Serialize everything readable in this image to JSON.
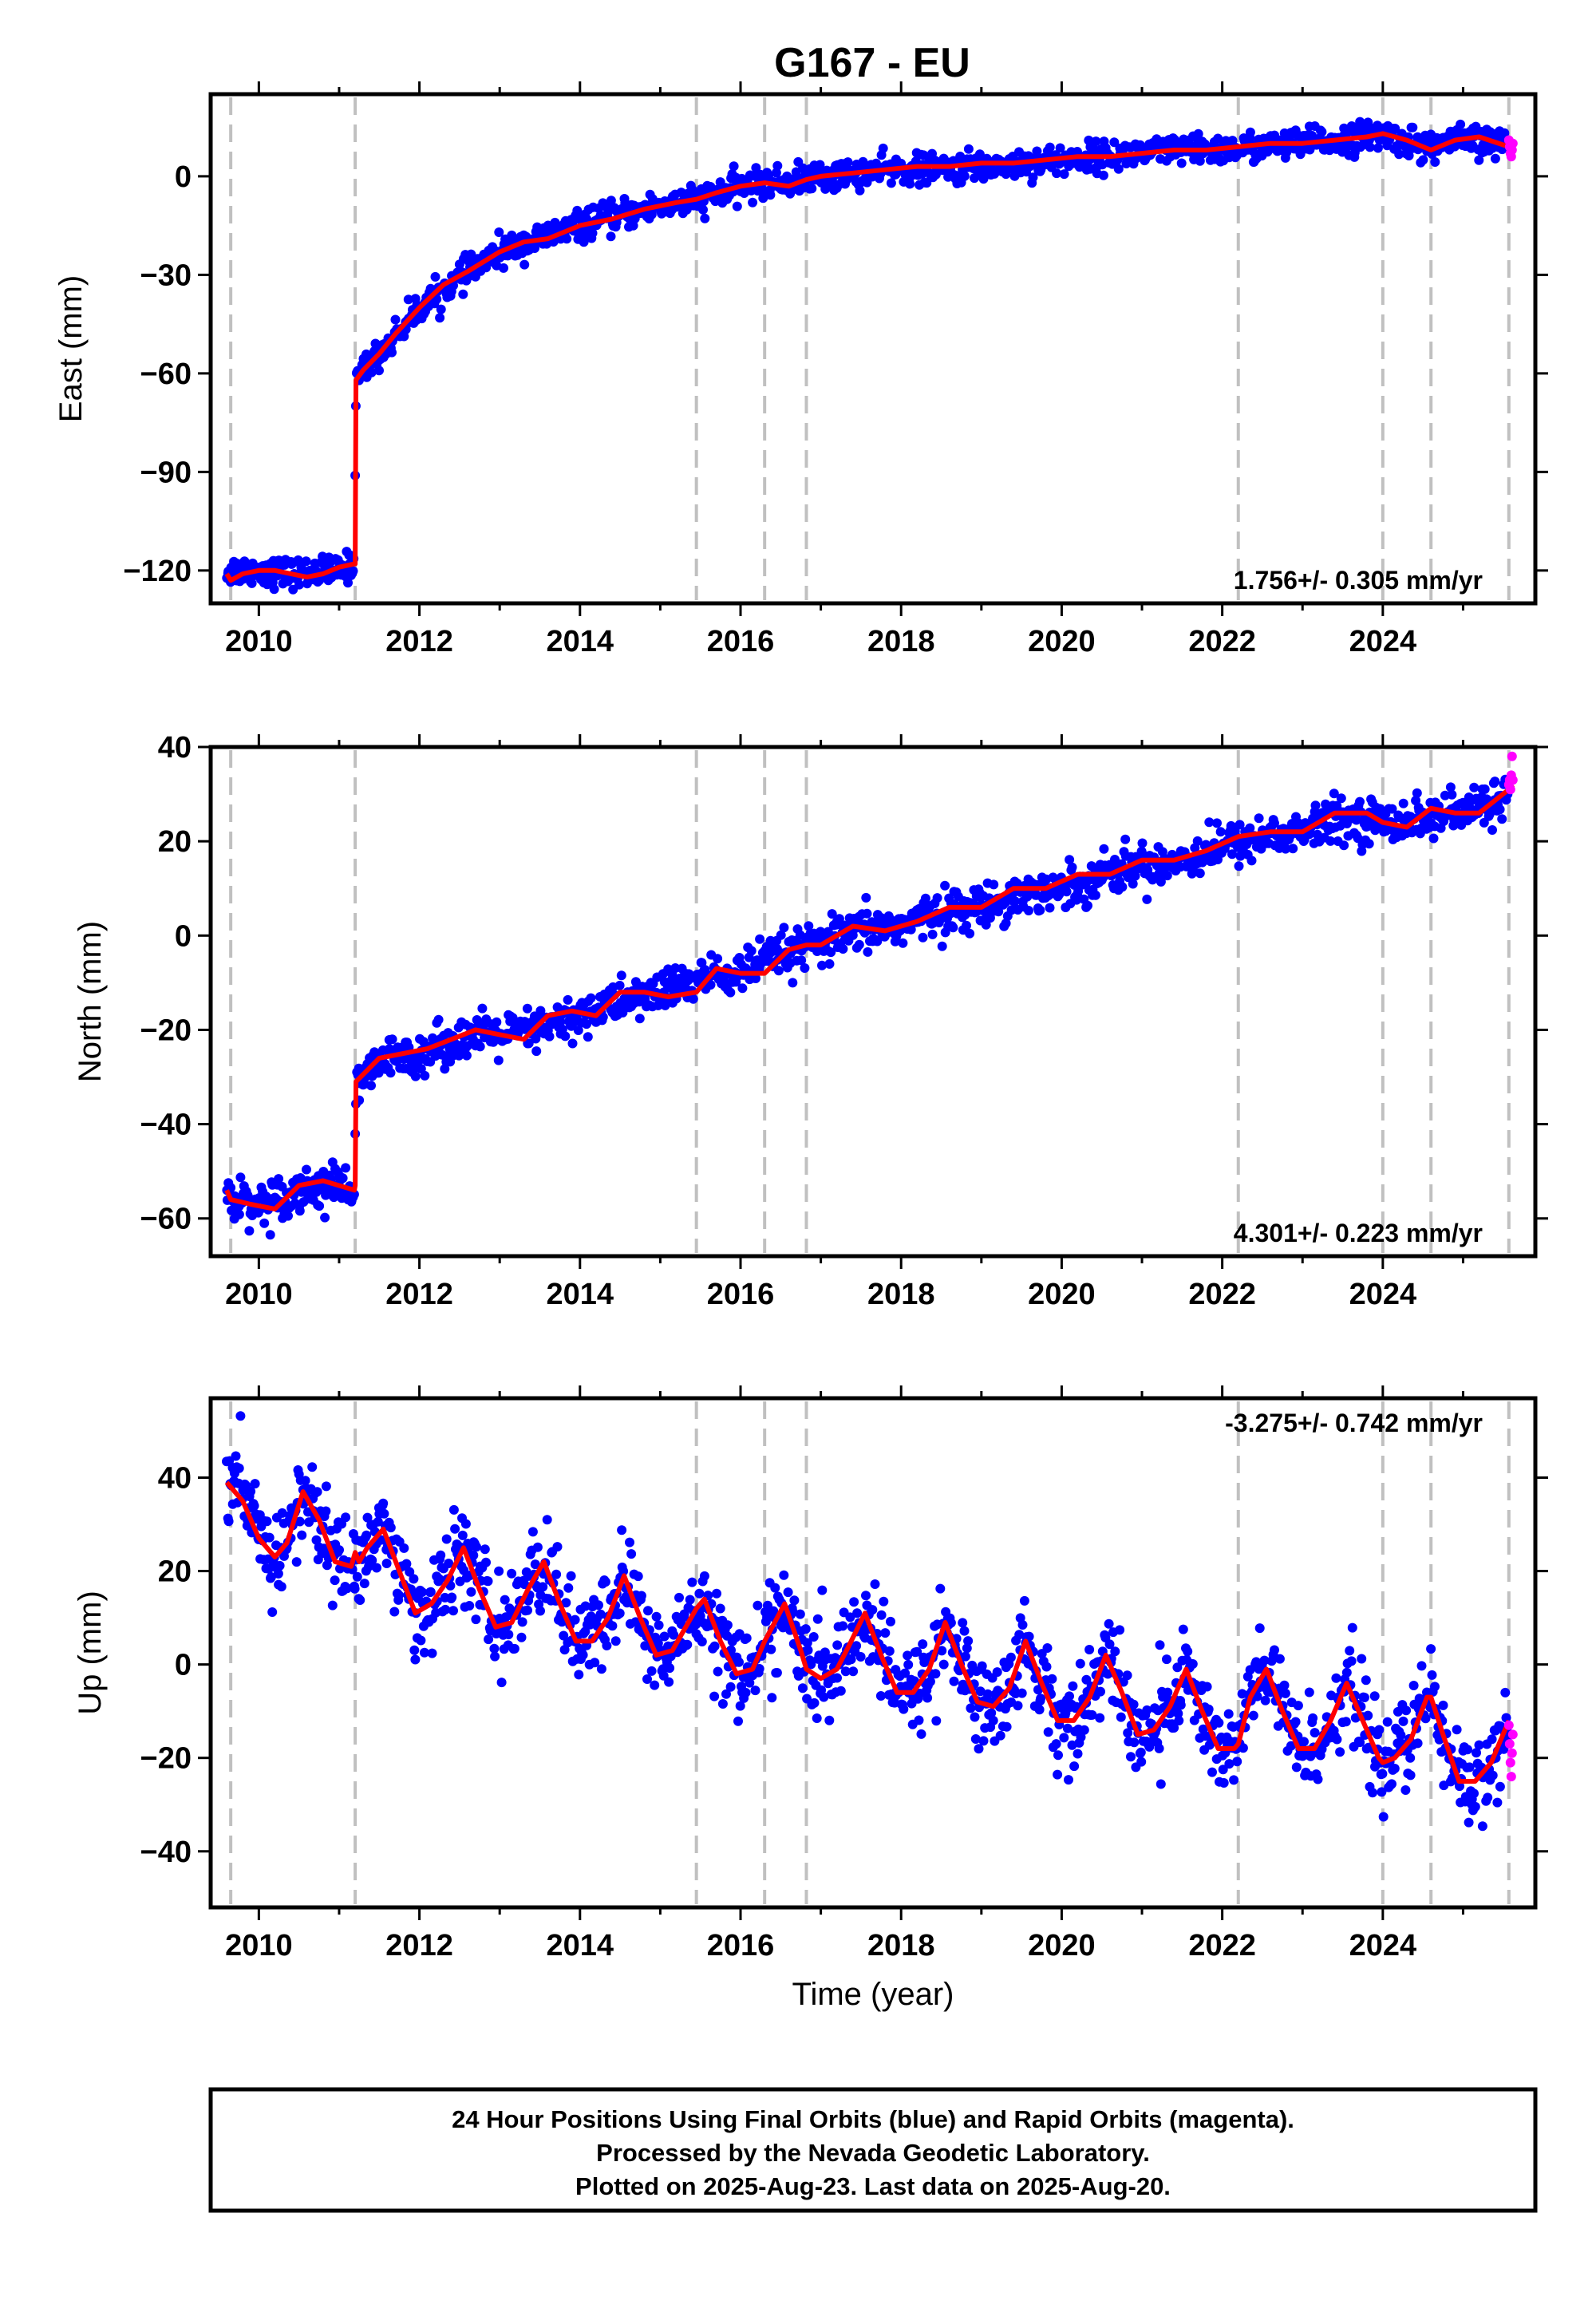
{
  "title": "G167 - EU",
  "colors": {
    "final_orbits": "#0000ff",
    "rapid_orbits": "#ff00ff",
    "model_fit": "#ff0000",
    "event_lines": "#c0c0c0",
    "frame": "#000000"
  },
  "chart_data": [
    {
      "type": "scatter",
      "component": "East",
      "ylabel": "East (mm)",
      "xlabel": "",
      "xlim": [
        2009.4,
        2025.9
      ],
      "ylim": [
        -130,
        25
      ],
      "yticks": [
        -120,
        -90,
        -60,
        -30,
        0
      ],
      "xticks": [
        2010,
        2012,
        2014,
        2016,
        2018,
        2020,
        2022,
        2024
      ],
      "rate_annotation": "1.756+/- 0.305 mm/yr",
      "rate_position": "bottom-right",
      "event_lines": [
        2009.65,
        2011.2,
        2015.45,
        2016.3,
        2016.82,
        2022.2,
        2024.0,
        2024.6,
        2025.57
      ],
      "series": [
        {
          "role": "model_fit",
          "x": [
            2009.6,
            2009.65,
            2009.8,
            2010.0,
            2010.2,
            2010.4,
            2010.6,
            2010.8,
            2011.0,
            2011.19,
            2011.2,
            2011.21,
            2011.3,
            2011.5,
            2011.7,
            2012.0,
            2012.3,
            2012.6,
            2013.0,
            2013.3,
            2013.6,
            2014.0,
            2014.4,
            2014.8,
            2015.2,
            2015.45,
            2015.7,
            2016.0,
            2016.3,
            2016.6,
            2016.82,
            2017.0,
            2017.4,
            2017.8,
            2018.2,
            2018.6,
            2019.0,
            2019.4,
            2019.8,
            2020.2,
            2020.6,
            2021.0,
            2021.4,
            2021.8,
            2022.2,
            2022.6,
            2023.0,
            2023.4,
            2023.8,
            2024.0,
            2024.3,
            2024.6,
            2024.9,
            2025.2,
            2025.57,
            2025.62
          ],
          "y": [
            -121,
            -123,
            -121,
            -120,
            -120,
            -121,
            -122,
            -121,
            -119,
            -118,
            -118,
            -62,
            -59,
            -54,
            -48,
            -40,
            -33,
            -29,
            -23,
            -20,
            -19,
            -15,
            -13,
            -10,
            -8,
            -7,
            -5,
            -3,
            -2,
            -3,
            -1,
            0,
            1,
            2,
            3,
            3,
            4,
            4,
            5,
            6,
            6,
            7,
            8,
            8,
            9,
            10,
            10,
            11,
            12,
            13,
            11,
            8,
            11,
            12,
            9,
            9
          ]
        },
        {
          "role": "final_orbits",
          "envelope_x": [
            2009.6,
            2010.0,
            2010.5,
            2011.0,
            2011.19,
            2011.21,
            2011.5,
            2012.0,
            2012.5,
            2013.0,
            2013.5,
            2014.0,
            2014.5,
            2015.0,
            2015.5,
            2016.0,
            2016.5,
            2017.0,
            2017.5,
            2018.0,
            2018.5,
            2019.0,
            2019.5,
            2020.0,
            2020.5,
            2021.0,
            2021.5,
            2022.0,
            2022.5,
            2023.0,
            2023.5,
            2024.0,
            2024.5,
            2025.0,
            2025.57
          ],
          "envelope_center": [
            -120,
            -120,
            -121,
            -120,
            -118,
            -61,
            -54,
            -40,
            -31,
            -23,
            -19,
            -15,
            -12,
            -9,
            -7,
            -3,
            -2,
            0,
            1,
            2,
            2,
            3,
            4,
            5,
            6,
            7,
            8,
            8,
            9,
            10,
            11,
            13,
            9,
            11,
            10
          ],
          "spread_mm": 4
        },
        {
          "role": "rapid_orbits",
          "x": [
            2025.57,
            2025.58,
            2025.59,
            2025.6,
            2025.61,
            2025.62
          ],
          "y": [
            11,
            9,
            7,
            6,
            8,
            10
          ]
        }
      ]
    },
    {
      "type": "scatter",
      "component": "North",
      "ylabel": "North (mm)",
      "xlabel": "",
      "xlim": [
        2009.4,
        2025.9
      ],
      "ylim": [
        -68,
        40
      ],
      "yticks": [
        -60,
        -40,
        -20,
        0,
        20,
        40
      ],
      "xticks": [
        2010,
        2012,
        2014,
        2016,
        2018,
        2020,
        2022,
        2024
      ],
      "rate_annotation": "4.301+/- 0.223 mm/yr",
      "rate_position": "bottom-right",
      "event_lines": [
        2009.65,
        2011.2,
        2015.45,
        2016.3,
        2016.82,
        2022.2,
        2024.0,
        2024.6,
        2025.57
      ],
      "series": [
        {
          "role": "model_fit",
          "x": [
            2009.6,
            2009.65,
            2009.9,
            2010.2,
            2010.5,
            2010.8,
            2011.19,
            2011.2,
            2011.21,
            2011.5,
            2011.8,
            2012.1,
            2012.4,
            2012.7,
            2013.0,
            2013.3,
            2013.6,
            2013.9,
            2014.2,
            2014.5,
            2014.8,
            2015.1,
            2015.45,
            2015.7,
            2016.0,
            2016.3,
            2016.6,
            2016.82,
            2017.0,
            2017.4,
            2017.8,
            2018.2,
            2018.6,
            2019.0,
            2019.4,
            2019.8,
            2020.2,
            2020.6,
            2021.0,
            2021.4,
            2021.8,
            2022.2,
            2022.6,
            2023.0,
            2023.4,
            2023.8,
            2024.0,
            2024.3,
            2024.6,
            2024.9,
            2025.2,
            2025.57,
            2025.62
          ],
          "y": [
            -54,
            -56,
            -57,
            -58,
            -53,
            -52,
            -54,
            -53,
            -31,
            -26,
            -25,
            -24,
            -22,
            -20,
            -21,
            -22,
            -17,
            -16,
            -17,
            -12,
            -12,
            -13,
            -12,
            -7,
            -8,
            -8,
            -3,
            -2,
            -2,
            2,
            1,
            3,
            6,
            6,
            10,
            10,
            13,
            13,
            16,
            16,
            18,
            21,
            22,
            22,
            26,
            26,
            24,
            23,
            27,
            26,
            26,
            31,
            32
          ]
        },
        {
          "role": "final_orbits",
          "envelope_x": [
            2009.6,
            2010.0,
            2010.5,
            2011.0,
            2011.19,
            2011.21,
            2011.5,
            2012.0,
            2012.5,
            2013.0,
            2013.5,
            2014.0,
            2014.5,
            2015.0,
            2015.5,
            2016.0,
            2016.5,
            2017.0,
            2017.5,
            2018.0,
            2018.5,
            2019.0,
            2019.5,
            2020.0,
            2020.5,
            2021.0,
            2021.5,
            2022.0,
            2022.5,
            2023.0,
            2023.5,
            2024.0,
            2024.5,
            2025.0,
            2025.57
          ],
          "envelope_center": [
            -55,
            -57,
            -54,
            -53,
            -54,
            -33,
            -27,
            -25,
            -22,
            -21,
            -20,
            -17,
            -14,
            -12,
            -9,
            -8,
            -4,
            -2,
            1,
            2,
            5,
            6,
            9,
            10,
            13,
            15,
            16,
            19,
            21,
            22,
            25,
            24,
            25,
            26,
            30
          ],
          "spread_mm": 4
        },
        {
          "role": "rapid_orbits",
          "x": [
            2025.57,
            2025.58,
            2025.59,
            2025.6,
            2025.61,
            2025.62
          ],
          "y": [
            32,
            33,
            31,
            34,
            38,
            33
          ]
        }
      ]
    },
    {
      "type": "scatter",
      "component": "Up",
      "ylabel": "Up (mm)",
      "xlabel": "Time (year)",
      "xlim": [
        2009.4,
        2025.9
      ],
      "ylim": [
        -52,
        57
      ],
      "yticks": [
        -40,
        -20,
        0,
        20,
        40
      ],
      "xticks": [
        2010,
        2012,
        2014,
        2016,
        2018,
        2020,
        2022,
        2024
      ],
      "rate_annotation": "-3.275+/- 0.742 mm/yr",
      "rate_position": "top-right",
      "event_lines": [
        2009.65,
        2011.2,
        2015.45,
        2016.3,
        2016.82,
        2022.2,
        2024.0,
        2024.6,
        2025.57
      ],
      "series": [
        {
          "role": "model_fit",
          "x": [
            2009.6,
            2009.8,
            2010.0,
            2010.2,
            2010.35,
            2010.55,
            2010.75,
            2010.95,
            2011.15,
            2011.2,
            2011.25,
            2011.35,
            2011.55,
            2011.75,
            2011.95,
            2012.15,
            2012.35,
            2012.55,
            2012.75,
            2012.95,
            2013.15,
            2013.35,
            2013.55,
            2013.75,
            2013.95,
            2014.15,
            2014.35,
            2014.55,
            2014.75,
            2014.95,
            2015.15,
            2015.35,
            2015.45,
            2015.55,
            2015.75,
            2015.95,
            2016.15,
            2016.3,
            2016.55,
            2016.75,
            2016.82,
            2017.0,
            2017.2,
            2017.35,
            2017.55,
            2017.75,
            2017.95,
            2018.15,
            2018.35,
            2018.55,
            2018.75,
            2018.95,
            2019.15,
            2019.35,
            2019.55,
            2019.75,
            2019.95,
            2020.15,
            2020.35,
            2020.55,
            2020.75,
            2020.95,
            2021.15,
            2021.35,
            2021.55,
            2021.75,
            2021.95,
            2022.15,
            2022.2,
            2022.35,
            2022.55,
            2022.75,
            2022.95,
            2023.15,
            2023.35,
            2023.55,
            2023.75,
            2023.95,
            2024.0,
            2024.15,
            2024.35,
            2024.55,
            2024.6,
            2024.75,
            2024.95,
            2025.15,
            2025.35,
            2025.57
          ],
          "y": [
            39,
            35,
            27,
            23,
            26,
            37,
            31,
            22,
            21,
            24,
            22,
            25,
            29,
            20,
            11,
            13,
            18,
            25,
            16,
            8,
            9,
            16,
            22,
            13,
            5,
            5,
            10,
            19,
            10,
            2,
            3,
            9,
            12,
            14,
            5,
            -2,
            -1,
            5,
            13,
            3,
            -1,
            -3,
            -1,
            4,
            11,
            2,
            -6,
            -6,
            -1,
            9,
            0,
            -8,
            -9,
            -5,
            5,
            -4,
            -12,
            -12,
            -7,
            2,
            -6,
            -15,
            -14,
            -9,
            -1,
            -10,
            -18,
            -18,
            -17,
            -7,
            -1,
            -10,
            -18,
            -18,
            -12,
            -4,
            -12,
            -20,
            -21,
            -20,
            -16,
            -7,
            -7,
            -15,
            -25,
            -25,
            -21,
            -12
          ]
        },
        {
          "role": "final_orbits",
          "envelope_from_model": true,
          "spread_mm": 9
        },
        {
          "role": "rapid_orbits",
          "x": [
            2025.57,
            2025.58,
            2025.59,
            2025.6,
            2025.61,
            2025.62
          ],
          "y": [
            -13,
            -17,
            -21,
            -24,
            -19,
            -15
          ]
        }
      ]
    }
  ],
  "footer": {
    "line1": "24 Hour Positions Using Final Orbits (blue) and Rapid Orbits (magenta).",
    "line2": "Processed by the Nevada Geodetic Laboratory.",
    "line3": "Plotted on 2025-Aug-23. Last data on 2025-Aug-20."
  }
}
